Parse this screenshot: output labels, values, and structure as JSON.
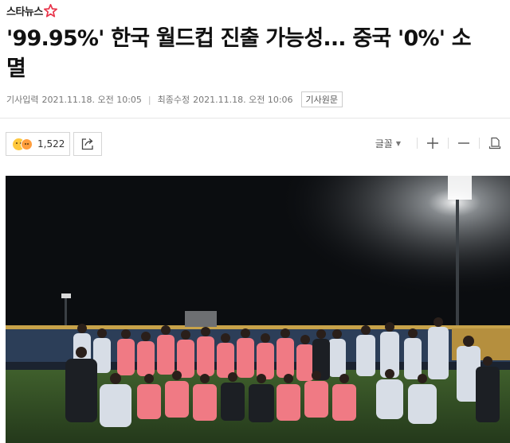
{
  "brand": {
    "name": "스타뉴스",
    "logo_icon": "star-logo-icon"
  },
  "article": {
    "headline_line1": "'99.95%' 한국 월드컵 진출 가능성... 중국 '0%' 소",
    "headline_line2": "멸",
    "input_label": "기사입력",
    "input_time": "2021.11.18. 오전 10:05",
    "modified_label": "최종수정",
    "modified_time": "2021.11.18. 오전 10:06",
    "original_button": "기사원문"
  },
  "toolbar": {
    "reaction_count": "1,522",
    "share_icon": "share-icon",
    "font_label": "글꼴",
    "zoom_in_icon": "plus-icon",
    "zoom_out_icon": "minus-icon",
    "print_icon": "print-icon"
  },
  "photo": {
    "description_icon": "team-photo",
    "colors": {
      "sky": "#0b0d10",
      "field": "#2e4a24",
      "jersey": "#f07a84",
      "staff": "#d7dde6"
    }
  }
}
